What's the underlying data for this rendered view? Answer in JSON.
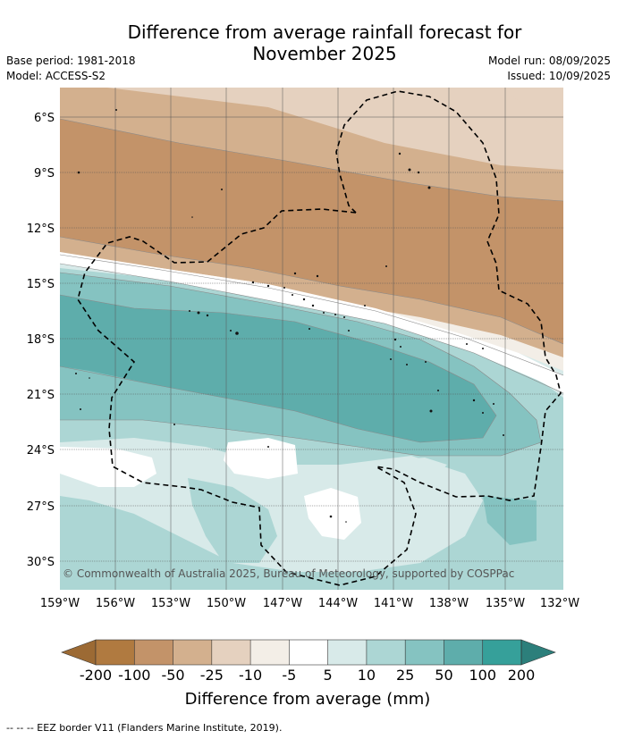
{
  "title": {
    "line1": "Difference from average rainfall forecast for",
    "line2": "November 2025"
  },
  "meta": {
    "base_period": "Base period: 1981-2018",
    "model": "Model: ACCESS-S2",
    "model_run": "Model run: 08/09/2025",
    "issued": "Issued: 10/09/2025"
  },
  "map": {
    "lat_labels": [
      "6°S",
      "9°S",
      "12°S",
      "15°S",
      "18°S",
      "21°S",
      "24°S",
      "27°S",
      "30°S"
    ],
    "lon_labels": [
      "159°W",
      "156°W",
      "153°W",
      "150°W",
      "147°W",
      "144°W",
      "141°W",
      "138°W",
      "135°W",
      "132°W"
    ],
    "copyright": "© Commonwealth of Australia 2025, Bureau of Meteorology, supported by COSPPac"
  },
  "colorbar": {
    "tick_labels": [
      "-200",
      "-100",
      "-50",
      "-25",
      "-10",
      "-5",
      "5",
      "10",
      "25",
      "50",
      "100",
      "200"
    ],
    "bin_colors": [
      "#b07a40",
      "#c39369",
      "#d3b08e",
      "#e5d1bf",
      "#f3eee7",
      "#ffffff",
      "#d8eae9",
      "#acd6d4",
      "#85c3c1",
      "#5eadab",
      "#36a09a"
    ],
    "under_color": "#9c6a34",
    "over_color": "#2c7f7b",
    "title": "Difference from average (mm)"
  },
  "footer": {
    "legend_text": "--  --  -- EEZ border V11 (Flanders Marine Institute, 2019)."
  }
}
